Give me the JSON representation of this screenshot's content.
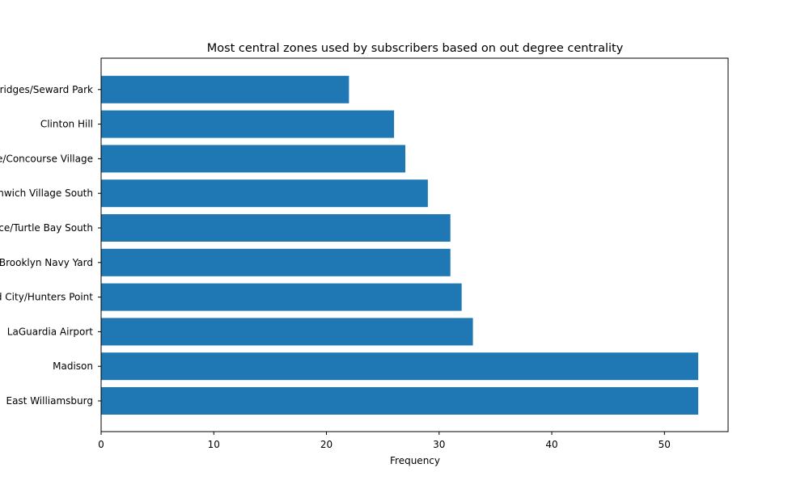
{
  "chart_data": {
    "type": "bar",
    "orientation": "horizontal",
    "title": "Most central zones used by subscribers based on out degree centrality",
    "xlabel": "Frequency",
    "ylabel": "",
    "categories": [
      "East Williamsburg",
      "Madison",
      "LaGuardia Airport",
      "Long Island City/Hunters Point",
      "Brooklyn Navy Yard",
      "Sutton Place/Turtle Bay South",
      "Greenwich Village South",
      "East Concourse/Concourse Village",
      "Clinton Hill",
      "Two Bridges/Seward Park"
    ],
    "values": [
      53,
      53,
      33,
      32,
      31,
      31,
      29,
      27,
      26,
      22
    ],
    "xlim": [
      0,
      55.65
    ],
    "xticks": [
      0,
      10,
      20,
      30,
      40,
      50
    ],
    "grid": false,
    "bar_color": "#1f77b4"
  }
}
